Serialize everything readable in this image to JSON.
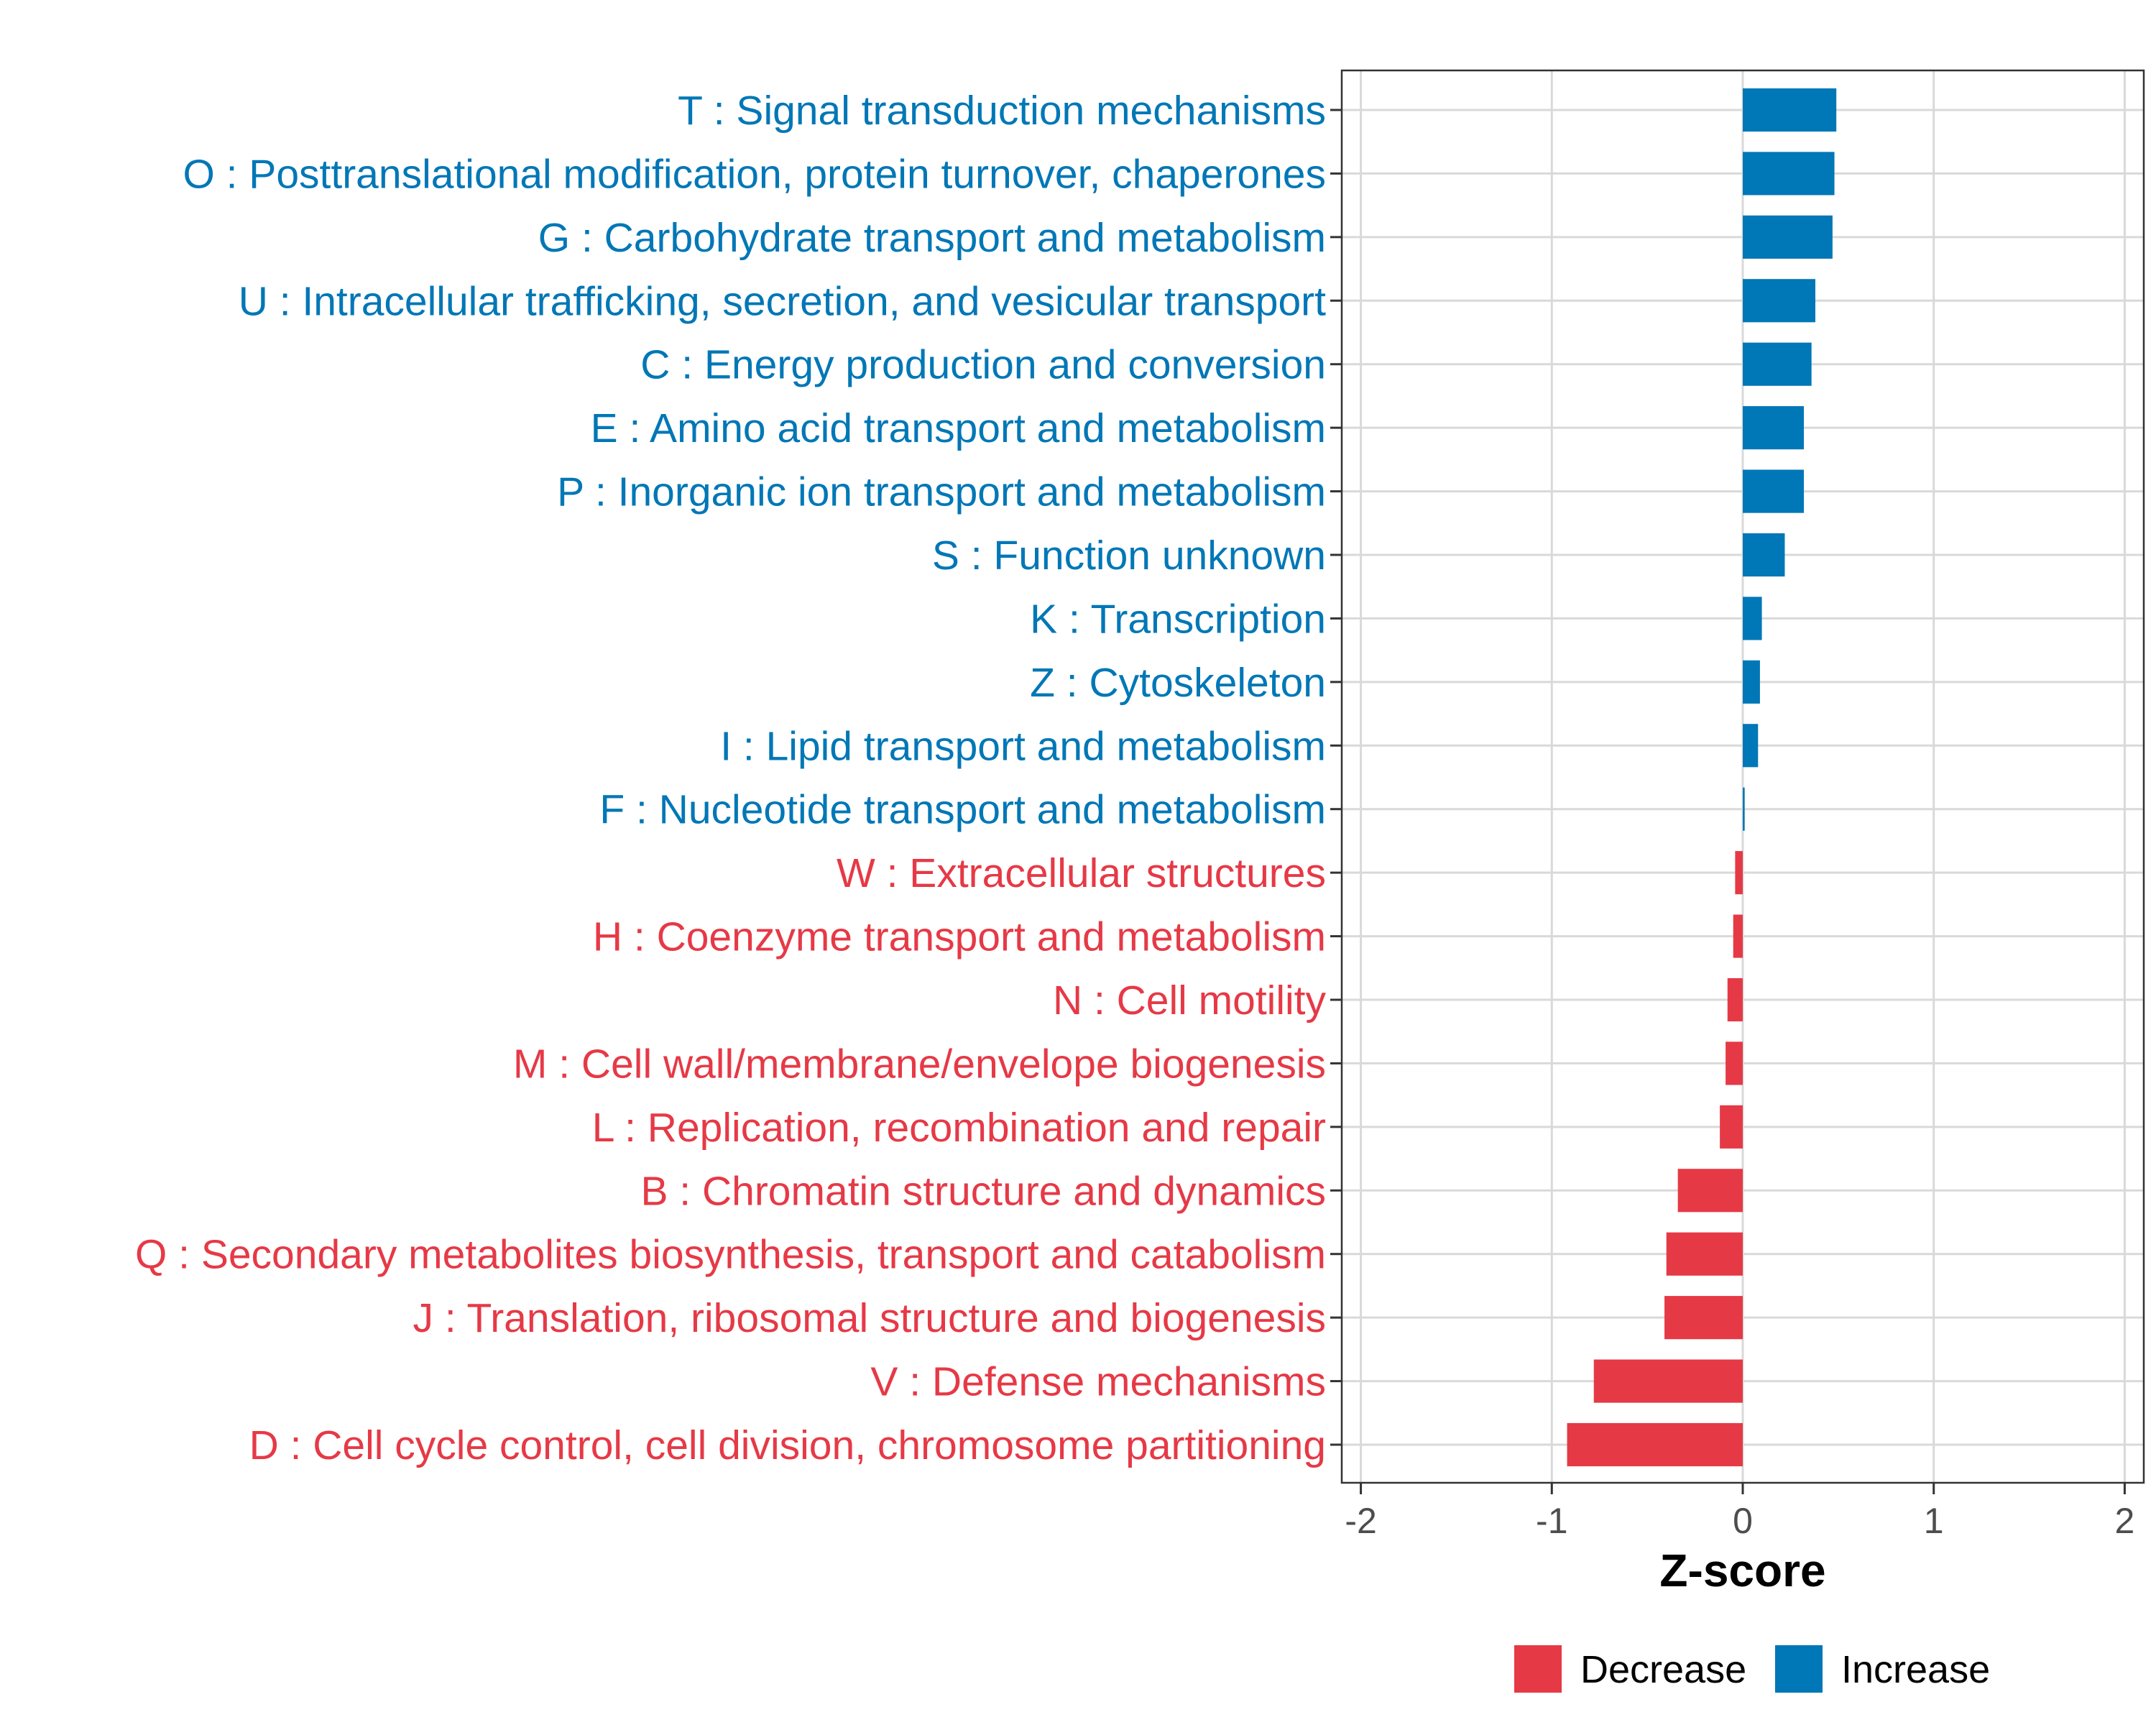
{
  "chart_data": {
    "type": "bar",
    "orientation": "horizontal",
    "xlabel": "Z-score",
    "ylabel": "",
    "xlim": [
      -2.1,
      2.1
    ],
    "xticks": [
      -2,
      -1,
      0,
      1,
      2
    ],
    "xtick_labels": [
      "-2",
      "-1",
      "0",
      "1",
      "2"
    ],
    "grid": true,
    "legend_position": "bottom",
    "legend": [
      {
        "name": "Decrease",
        "color": "#e63946"
      },
      {
        "name": "Increase",
        "color": "#0077b6"
      }
    ],
    "categories": [
      "T : Signal transduction mechanisms",
      "O : Posttranslational modification, protein turnover, chaperones",
      "G : Carbohydrate transport and metabolism",
      "U : Intracellular trafficking, secretion, and vesicular transport",
      "C : Energy production and conversion",
      "E : Amino acid transport and metabolism",
      "P : Inorganic ion transport and metabolism",
      "S : Function unknown",
      "K : Transcription",
      "Z : Cytoskeleton",
      "I : Lipid transport and metabolism",
      "F : Nucleotide transport and metabolism",
      "W : Extracellular structures",
      "H : Coenzyme transport and metabolism",
      "N : Cell motility",
      "M : Cell wall/membrane/envelope biogenesis",
      "L : Replication, recombination and repair",
      "B : Chromatin structure and dynamics",
      "Q : Secondary metabolites biosynthesis, transport and catabolism",
      "J : Translation, ribosomal structure and biogenesis",
      "V : Defense mechanisms",
      "D : Cell cycle control, cell division, chromosome partitioning"
    ],
    "values": [
      0.49,
      0.48,
      0.47,
      0.38,
      0.36,
      0.32,
      0.32,
      0.22,
      0.1,
      0.09,
      0.08,
      0.01,
      -0.04,
      -0.05,
      -0.08,
      -0.09,
      -0.12,
      -0.34,
      -0.4,
      -0.41,
      -0.78,
      -0.92
    ],
    "groups": [
      "Increase",
      "Increase",
      "Increase",
      "Increase",
      "Increase",
      "Increase",
      "Increase",
      "Increase",
      "Increase",
      "Increase",
      "Increase",
      "Increase",
      "Decrease",
      "Decrease",
      "Decrease",
      "Decrease",
      "Decrease",
      "Decrease",
      "Decrease",
      "Decrease",
      "Decrease",
      "Decrease"
    ]
  }
}
